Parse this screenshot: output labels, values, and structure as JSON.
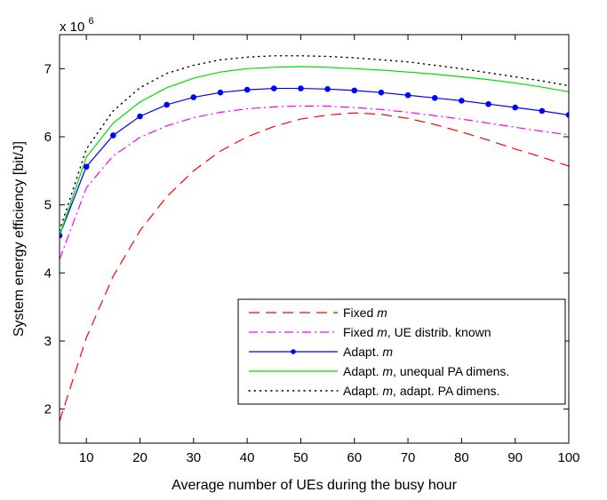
{
  "chart_data": {
    "type": "line",
    "title": "",
    "xlabel": "Average number of UEs during the busy hour",
    "ylabel": "System energy efficiency [bit/J]",
    "y_multiplier_label": "x 10",
    "y_multiplier_exponent": "6",
    "xlim": [
      5,
      100
    ],
    "ylim": [
      1.5,
      7.5
    ],
    "grid": false,
    "legend_position": "bottom-right",
    "x_ticks": [
      10,
      20,
      30,
      40,
      50,
      60,
      70,
      80,
      90,
      100
    ],
    "y_ticks": [
      2,
      3,
      4,
      5,
      6,
      7
    ],
    "x": [
      5,
      10,
      15,
      20,
      25,
      30,
      35,
      40,
      45,
      50,
      55,
      60,
      65,
      70,
      75,
      80,
      85,
      90,
      95,
      100
    ],
    "series": [
      {
        "name": "Fixed m",
        "name_main": "Fixed ",
        "name_italic": "m",
        "name_rest": "",
        "color": "#ff0000",
        "dash": "12 7",
        "marker": false,
        "values": [
          1.82,
          3.05,
          3.95,
          4.62,
          5.12,
          5.5,
          5.79,
          6.0,
          6.15,
          6.26,
          6.32,
          6.35,
          6.33,
          6.27,
          6.18,
          6.07,
          5.95,
          5.82,
          5.7,
          5.57
        ]
      },
      {
        "name": "Fixed m, UE distrib. known",
        "name_main": "Fixed ",
        "name_italic": "m",
        "name_rest": ", UE distrib. known",
        "color": "#ff00ff",
        "dash": "10 4 2 4",
        "marker": false,
        "values": [
          4.2,
          5.25,
          5.72,
          5.99,
          6.16,
          6.28,
          6.36,
          6.41,
          6.44,
          6.45,
          6.45,
          6.43,
          6.4,
          6.36,
          6.31,
          6.26,
          6.2,
          6.14,
          6.08,
          6.03
        ]
      },
      {
        "name": "Adapt. m",
        "name_main": "Adapt. ",
        "name_italic": "m",
        "name_rest": "",
        "color": "#0000ff",
        "dash": "",
        "marker": true,
        "values": [
          4.55,
          5.56,
          6.02,
          6.3,
          6.47,
          6.58,
          6.65,
          6.69,
          6.71,
          6.71,
          6.7,
          6.68,
          6.65,
          6.61,
          6.57,
          6.53,
          6.48,
          6.43,
          6.38,
          6.32
        ]
      },
      {
        "name": "Adapt. m, unequal PA dimens.",
        "name_main": "Adapt. ",
        "name_italic": "m",
        "name_rest": ", unequal PA dimens.",
        "color": "#00dd00",
        "dash": "",
        "marker": false,
        "values": [
          4.55,
          5.7,
          6.2,
          6.51,
          6.72,
          6.86,
          6.95,
          7.0,
          7.02,
          7.03,
          7.02,
          7.0,
          6.98,
          6.95,
          6.92,
          6.88,
          6.84,
          6.79,
          6.73,
          6.66
        ]
      },
      {
        "name": "Adapt. m, adapt. PA dimens.",
        "name_main": "Adapt. ",
        "name_italic": "m",
        "name_rest": ", adapt. PA dimens.",
        "color": "#000000",
        "dash": "1.2 5",
        "marker": false,
        "values": [
          4.62,
          5.82,
          6.38,
          6.72,
          6.93,
          7.05,
          7.13,
          7.17,
          7.19,
          7.19,
          7.18,
          7.16,
          7.13,
          7.1,
          7.05,
          7.0,
          6.94,
          6.88,
          6.82,
          6.75
        ]
      }
    ]
  }
}
